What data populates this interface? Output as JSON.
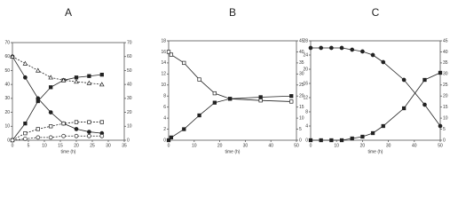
{
  "chart_data": [
    {
      "type": "line",
      "title": "A",
      "x_label": "time (h)",
      "x": [
        0,
        4,
        8,
        12,
        16,
        20,
        24,
        28
      ],
      "xlim": [
        0,
        35
      ],
      "xticks": [
        0,
        5,
        10,
        15,
        20,
        25,
        30,
        35
      ],
      "ylim": [
        0,
        70
      ],
      "yticks": [
        0,
        10,
        20,
        30,
        40,
        50,
        60,
        70
      ],
      "y2lim": [
        0,
        70
      ],
      "y2ticks": [
        0,
        10,
        20,
        30,
        40,
        50,
        60,
        70
      ],
      "series": [
        {
          "marker": "circle",
          "filled": true,
          "dashed": false,
          "color": "#222",
          "values": [
            60,
            45,
            30,
            20,
            12,
            8,
            6,
            5
          ]
        },
        {
          "marker": "square",
          "filled": true,
          "dashed": false,
          "color": "#222",
          "values": [
            0,
            12,
            28,
            38,
            43,
            45,
            46,
            47
          ]
        },
        {
          "marker": "triangle",
          "filled": false,
          "dashed": true,
          "color": "#222",
          "values": [
            60,
            55,
            50,
            45,
            43,
            42,
            41,
            40
          ]
        },
        {
          "marker": "square",
          "filled": false,
          "dashed": true,
          "color": "#222",
          "values": [
            0,
            5,
            8,
            10,
            12,
            13,
            13,
            13
          ]
        },
        {
          "marker": "circle",
          "filled": false,
          "dashed": true,
          "color": "#222",
          "values": [
            0,
            1,
            2,
            2,
            3,
            3,
            3,
            3
          ]
        }
      ]
    },
    {
      "type": "line",
      "title": "B",
      "x_label": "time (h)",
      "x": [
        0,
        1,
        6,
        12,
        18,
        24,
        36,
        48
      ],
      "xlim": [
        0,
        50
      ],
      "xticks": [
        0,
        10,
        20,
        30,
        40,
        50
      ],
      "ylim": [
        0,
        18
      ],
      "yticks": [
        0,
        2,
        4,
        6,
        8,
        10,
        12,
        14,
        16,
        18
      ],
      "y2lim": [
        0,
        45
      ],
      "y2ticks": [
        0,
        5,
        10,
        15,
        20,
        25,
        30,
        35,
        40,
        45
      ],
      "series": [
        {
          "marker": "square",
          "filled": false,
          "dashed": false,
          "color": "#222",
          "values": [
            16,
            15.5,
            14,
            11,
            8.5,
            7.5,
            7.2,
            7
          ]
        },
        {
          "marker": "square",
          "filled": true,
          "dashed": false,
          "color": "#222",
          "values": [
            0,
            0.5,
            2,
            4.5,
            6.8,
            7.5,
            7.8,
            8
          ]
        }
      ]
    },
    {
      "type": "line",
      "title": "C",
      "x_label": "time (h)",
      "x": [
        0,
        4,
        8,
        12,
        16,
        20,
        24,
        28,
        36,
        44,
        50
      ],
      "xlim": [
        0,
        50
      ],
      "xticks": [
        0,
        10,
        20,
        30,
        40,
        50
      ],
      "ylim": [
        0,
        28
      ],
      "yticks": [
        0,
        4,
        8,
        12,
        16,
        20,
        24,
        28
      ],
      "y2lim": [
        0,
        45
      ],
      "y2ticks": [
        0,
        5,
        10,
        15,
        20,
        25,
        30,
        35,
        40,
        45
      ],
      "series": [
        {
          "marker": "circle",
          "filled": true,
          "dashed": false,
          "color": "#222",
          "values": [
            26,
            26,
            26,
            26,
            25.5,
            25,
            24,
            22,
            17,
            10,
            4
          ]
        },
        {
          "marker": "square",
          "filled": true,
          "dashed": false,
          "color": "#222",
          "values": [
            0,
            0,
            0,
            0,
            0.5,
            1,
            2,
            4,
            9,
            17,
            19
          ]
        }
      ]
    }
  ]
}
